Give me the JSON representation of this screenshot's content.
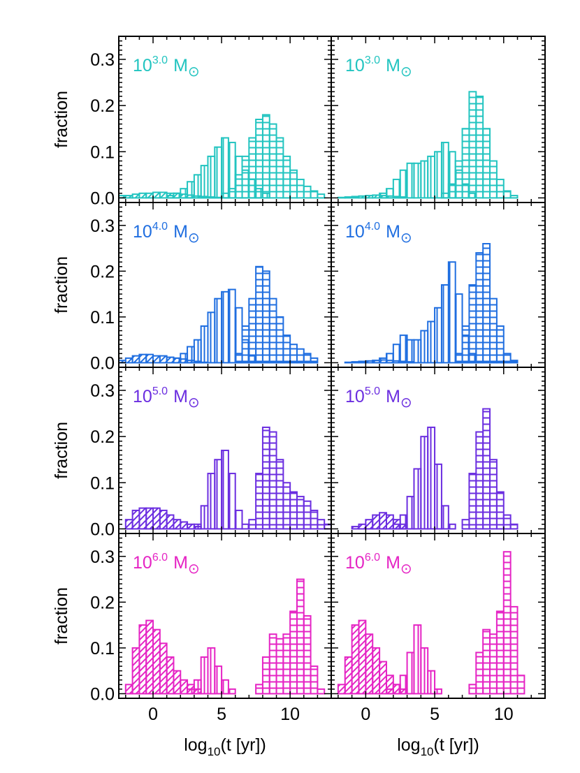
{
  "chart_data": {
    "type": "histogram-grid",
    "xlabel_parts": {
      "pre": "log",
      "sub": "10",
      "post": "(t [yr])"
    },
    "ylabel": "fraction",
    "xlim": [
      -2.5,
      13
    ],
    "ylim": [
      -0.01,
      0.35
    ],
    "xticks": [
      0,
      5,
      10
    ],
    "yticks": [
      "0.0",
      "0.1",
      "0.2",
      "0.3"
    ],
    "mass_symbol": "M",
    "hatch_styles": [
      "diagonal",
      "vertical",
      "horizontal"
    ],
    "rows": [
      {
        "label_base": "10",
        "label_exp": "3.0",
        "color": "#22c4c0",
        "panels": [
          {
            "series": [
              {
                "hatch": "diagonal",
                "start": -2.5,
                "width": 0.5,
                "values": [
                  0.005,
                  0.005,
                  0.008,
                  0.01,
                  0.01,
                  0.012,
                  0.012,
                  0.01,
                  0.01,
                  0.008,
                  0.006,
                  0.004,
                  0.003,
                  0.002,
                  0.001
                ]
              },
              {
                "hatch": "vertical",
                "start": 1.0,
                "width": 0.5,
                "values": [
                  0.005,
                  0.01,
                  0.02,
                  0.035,
                  0.05,
                  0.07,
                  0.09,
                  0.11,
                  0.13,
                  0.12,
                  0.09,
                  0.06,
                  0.04,
                  0.02,
                  0.01
                ]
              },
              {
                "hatch": "horizontal",
                "start": 5.0,
                "width": 0.5,
                "values": [
                  0.01,
                  0.02,
                  0.05,
                  0.09,
                  0.13,
                  0.17,
                  0.18,
                  0.16,
                  0.13,
                  0.09,
                  0.06,
                  0.04,
                  0.025,
                  0.015,
                  0.008
                ]
              }
            ]
          },
          {
            "series": [
              {
                "hatch": "diagonal",
                "start": -2.0,
                "width": 0.5,
                "values": [
                  0.001,
                  0.002,
                  0.003,
                  0.004,
                  0.005,
                  0.006,
                  0.005,
                  0.004,
                  0.003,
                  0.002
                ]
              },
              {
                "hatch": "vertical",
                "start": 1.0,
                "width": 0.5,
                "values": [
                  0.01,
                  0.02,
                  0.04,
                  0.06,
                  0.075,
                  0.075,
                  0.08,
                  0.09,
                  0.1,
                  0.12,
                  0.1,
                  0.06,
                  0.03,
                  0.01
                ]
              },
              {
                "hatch": "horizontal",
                "start": 5.5,
                "width": 0.5,
                "values": [
                  0.01,
                  0.03,
                  0.08,
                  0.15,
                  0.23,
                  0.22,
                  0.15,
                  0.08,
                  0.04,
                  0.015,
                  0.005
                ]
              }
            ]
          }
        ]
      },
      {
        "label_base": "10",
        "label_exp": "4.0",
        "color": "#1f6ee0",
        "panels": [
          {
            "series": [
              {
                "hatch": "diagonal",
                "start": -2.5,
                "width": 0.5,
                "values": [
                  0.005,
                  0.01,
                  0.015,
                  0.018,
                  0.018,
                  0.015,
                  0.015,
                  0.012,
                  0.01,
                  0.008,
                  0.005,
                  0.003,
                  0.001
                ]
              },
              {
                "hatch": "vertical",
                "start": 1.5,
                "width": 0.5,
                "values": [
                  0.01,
                  0.02,
                  0.035,
                  0.05,
                  0.08,
                  0.11,
                  0.14,
                  0.155,
                  0.16,
                  0.12,
                  0.05,
                  0.015
                ]
              },
              {
                "hatch": "horizontal",
                "start": 6.0,
                "width": 0.5,
                "values": [
                  0.02,
                  0.08,
                  0.14,
                  0.21,
                  0.2,
                  0.14,
                  0.1,
                  0.06,
                  0.04,
                  0.03,
                  0.02,
                  0.01
                ]
              }
            ]
          },
          {
            "series": [
              {
                "hatch": "diagonal",
                "start": -1.5,
                "width": 0.5,
                "values": [
                  0.001,
                  0.002,
                  0.003,
                  0.004,
                  0.005,
                  0.006,
                  0.005,
                  0.004,
                  0.003,
                  0.002
                ]
              },
              {
                "hatch": "vertical",
                "start": 0.5,
                "width": 0.5,
                "values": [
                  0.005,
                  0.01,
                  0.02,
                  0.04,
                  0.06,
                  0.05,
                  0.05,
                  0.07,
                  0.09,
                  0.12,
                  0.17,
                  0.22,
                  0.15,
                  0.06,
                  0.02
                ]
              },
              {
                "hatch": "horizontal",
                "start": 6.5,
                "width": 0.5,
                "values": [
                  0.02,
                  0.08,
                  0.17,
                  0.24,
                  0.26,
                  0.14,
                  0.08,
                  0.02,
                  0.005
                ]
              }
            ]
          }
        ]
      },
      {
        "label_base": "10",
        "label_exp": "5.0",
        "color": "#6b2ee0",
        "panels": [
          {
            "series": [
              {
                "hatch": "diagonal",
                "start": -2.0,
                "width": 0.5,
                "values": [
                  0.02,
                  0.04,
                  0.045,
                  0.045,
                  0.045,
                  0.04,
                  0.03,
                  0.02,
                  0.015,
                  0.01,
                  0.005
                ]
              },
              {
                "hatch": "vertical",
                "start": 3.0,
                "width": 0.5,
                "values": [
                  0.01,
                  0.05,
                  0.12,
                  0.15,
                  0.17,
                  0.12,
                  0.04,
                  0.01
                ]
              },
              {
                "hatch": "horizontal",
                "start": 7.0,
                "width": 0.5,
                "values": [
                  0.02,
                  0.12,
                  0.22,
                  0.21,
                  0.15,
                  0.1,
                  0.08,
                  0.07,
                  0.06,
                  0.04,
                  0.02,
                  0.01
                ]
              }
            ]
          },
          {
            "series": [
              {
                "hatch": "diagonal",
                "start": -1.0,
                "width": 0.5,
                "values": [
                  0.005,
                  0.01,
                  0.02,
                  0.03,
                  0.035,
                  0.03,
                  0.02,
                  0.01
                ]
              },
              {
                "hatch": "vertical",
                "start": 2.0,
                "width": 0.5,
                "values": [
                  0.01,
                  0.03,
                  0.07,
                  0.13,
                  0.2,
                  0.22,
                  0.14,
                  0.05,
                  0.01
                ]
              },
              {
                "hatch": "horizontal",
                "start": 7.0,
                "width": 0.5,
                "values": [
                  0.02,
                  0.12,
                  0.21,
                  0.26,
                  0.15,
                  0.08,
                  0.03,
                  0.01
                ]
              }
            ]
          }
        ]
      },
      {
        "label_base": "10",
        "label_exp": "6.0",
        "color": "#e524c4",
        "panels": [
          {
            "series": [
              {
                "hatch": "diagonal",
                "start": -2.0,
                "width": 0.5,
                "values": [
                  0.02,
                  0.1,
                  0.15,
                  0.16,
                  0.14,
                  0.11,
                  0.08,
                  0.05,
                  0.03,
                  0.02,
                  0.01
                ]
              },
              {
                "hatch": "vertical",
                "start": 2.5,
                "width": 0.5,
                "values": [
                  0.01,
                  0.03,
                  0.08,
                  0.1,
                  0.06,
                  0.03,
                  0.01
                ]
              },
              {
                "hatch": "horizontal",
                "start": 7.5,
                "width": 0.5,
                "values": [
                  0.02,
                  0.08,
                  0.13,
                  0.12,
                  0.13,
                  0.18,
                  0.25,
                  0.17,
                  0.06,
                  0.01
                ]
              }
            ]
          },
          {
            "series": [
              {
                "hatch": "diagonal",
                "start": -2.0,
                "width": 0.5,
                "values": [
                  0.02,
                  0.08,
                  0.15,
                  0.16,
                  0.13,
                  0.1,
                  0.07,
                  0.04,
                  0.02,
                  0.01
                ]
              },
              {
                "hatch": "vertical",
                "start": 1.5,
                "width": 0.5,
                "values": [
                  0.01,
                  0.02,
                  0.04,
                  0.09,
                  0.15,
                  0.1,
                  0.05,
                  0.01
                ]
              },
              {
                "hatch": "horizontal",
                "start": 7.5,
                "width": 0.5,
                "values": [
                  0.02,
                  0.09,
                  0.14,
                  0.13,
                  0.18,
                  0.31,
                  0.19,
                  0.04
                ]
              }
            ]
          }
        ]
      }
    ]
  }
}
